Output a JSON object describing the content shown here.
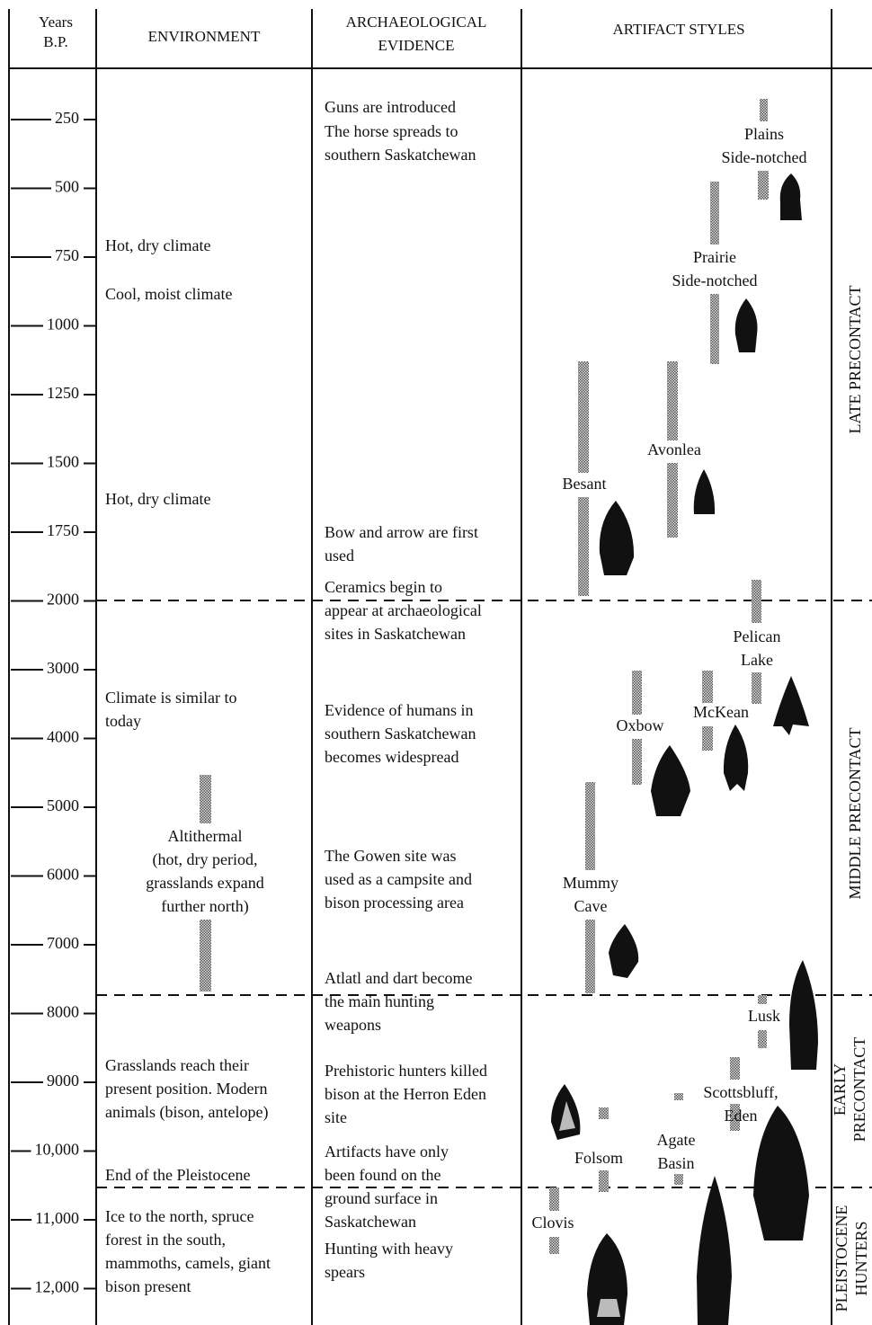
{
  "header": {
    "years": [
      "Years",
      "B.P."
    ],
    "environment": "ENVIRONMENT",
    "evidence": [
      "ARCHAEOLOGICAL",
      "EVIDENCE"
    ],
    "artifacts": "ARTIFACT STYLES"
  },
  "ticks": [
    "250",
    "500",
    "750",
    "1000",
    "1250",
    "1500",
    "1750",
    "2000",
    "3000",
    "4000",
    "5000",
    "6000",
    "7000",
    "8000",
    "9000",
    "10,000",
    "11,000",
    "12,000"
  ],
  "environment": [
    [
      "Hot, dry climate"
    ],
    [
      "Cool, moist climate"
    ],
    [
      "Hot, dry climate"
    ],
    [
      "Climate is similar to",
      "today"
    ],
    [
      "Altithermal",
      "(hot, dry period,",
      "grasslands expand",
      "further north)"
    ],
    [
      "Grasslands reach their",
      "present position.  Modern",
      "animals (bison, antelope)"
    ],
    [
      "End of the Pleistocene"
    ],
    [
      "Ice to the north, spruce",
      "forest in the south,",
      "mammoths, camels, giant",
      "bison present"
    ]
  ],
  "evidence": [
    [
      "Guns are introduced"
    ],
    [
      "The horse spreads to",
      "southern Saskatchewan"
    ],
    [
      "Bow and arrow are first",
      "used"
    ],
    [
      "Ceramics begin to",
      "appear at archaeological",
      "sites in Saskatchewan"
    ],
    [
      "Evidence of humans in",
      "southern Saskatchewan",
      "becomes widespread"
    ],
    [
      "The Gowen site was",
      "used as a campsite and",
      "bison processing area"
    ],
    [
      "Atlatl and dart become",
      "the main hunting",
      "weapons"
    ],
    [
      "Prehistoric hunters killed",
      "bison at the Herron Eden",
      "site"
    ],
    [
      "Artifacts have only",
      "been found on the",
      "ground surface in",
      "Saskatchewan"
    ],
    [
      "Hunting with heavy",
      "spears"
    ]
  ],
  "artifacts": [
    [
      "Plains",
      "Side-notched"
    ],
    [
      "Prairie",
      "Side-notched"
    ],
    [
      "Avonlea"
    ],
    [
      "Besant"
    ],
    [
      "Pelican",
      "Lake"
    ],
    [
      "Oxbow"
    ],
    [
      "McKean"
    ],
    [
      "Mummy",
      "Cave"
    ],
    [
      "Lusk"
    ],
    [
      "Scottsbluff,",
      "Eden"
    ],
    [
      "Agate",
      "Basin"
    ],
    [
      "Folsom"
    ],
    [
      "Clovis"
    ]
  ],
  "periods": [
    [
      "LATE PRECONTACT"
    ],
    [
      "MIDDLE PRECONTACT"
    ],
    [
      "EARLY",
      "PRECONTACT"
    ],
    [
      "PLEISTOCENE",
      "HUNTERS"
    ]
  ]
}
